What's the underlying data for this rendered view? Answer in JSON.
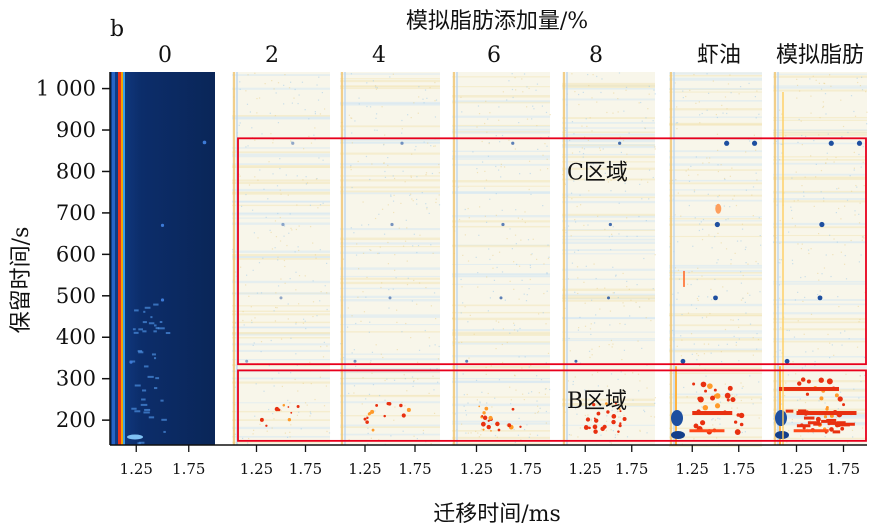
{
  "figure": {
    "panel_label": "b"
  },
  "chart_data": {
    "type": "heatmap",
    "title": "模拟脂肪添加量/%",
    "xlabel": "迁移时间/ms",
    "ylabel": "保留时间/s",
    "ylim": [
      140,
      1040
    ],
    "y_ticks": [
      {
        "value": 200,
        "label": "200"
      },
      {
        "value": 300,
        "label": "300"
      },
      {
        "value": 400,
        "label": "400"
      },
      {
        "value": 500,
        "label": "500"
      },
      {
        "value": 600,
        "label": "600"
      },
      {
        "value": 700,
        "label": "700"
      },
      {
        "value": 800,
        "label": "800"
      },
      {
        "value": 900,
        "label": "900"
      },
      {
        "value": 1000,
        "label": "1 000"
      }
    ],
    "x_ticks": [
      1.25,
      1.75
    ],
    "x_tick_labels": [
      "1.25",
      "1.75"
    ],
    "xlim": [
      1.0,
      2.0
    ],
    "samples": [
      {
        "label": "0",
        "type": "reference"
      },
      {
        "label": "2",
        "type": "difference"
      },
      {
        "label": "4",
        "type": "difference"
      },
      {
        "label": "6",
        "type": "difference"
      },
      {
        "label": "8",
        "type": "difference"
      },
      {
        "label": "虾油",
        "type": "difference"
      },
      {
        "label": "模拟脂肪",
        "type": "difference"
      }
    ],
    "regions": [
      {
        "label": "C区域",
        "ylim": [
          335,
          880
        ]
      },
      {
        "label": "B区域",
        "ylim": [
          150,
          320
        ]
      }
    ],
    "colors": {
      "reference_background": "#0b2a66",
      "reactant_ion_peak": "#e8321e",
      "increase": "#e83010",
      "decrease": "#1e4fa0",
      "region_box": "#e8001c"
    }
  }
}
